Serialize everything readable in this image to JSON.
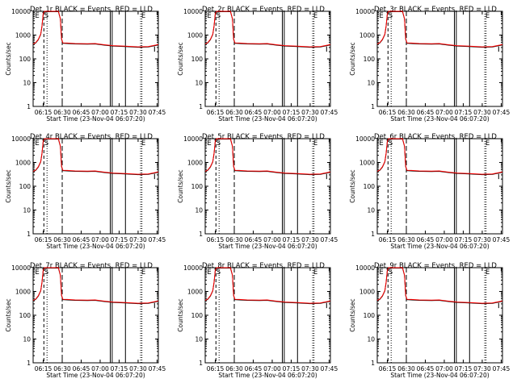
{
  "chart_data": [
    {
      "type": "line",
      "title": "Det_1r BLACK = Events, RED = LLD",
      "xlabel": "Start Time (23-Nov-04 06:07:20)",
      "ylabel": "Counts/sec",
      "ylim": [
        1,
        10000
      ],
      "yscale": "log",
      "xticks": [
        "06:15",
        "06:30",
        "06:45",
        "07:00",
        "07:15",
        "07:30",
        "07:45"
      ],
      "yticks": [
        "1",
        "10",
        "100",
        "1000",
        "10000"
      ],
      "markers": [
        "E",
        "S",
        "E"
      ],
      "series": [
        {
          "name": "Events",
          "color": "#000000"
        },
        {
          "name": "LLD",
          "color": "#ff0000"
        }
      ]
    },
    {
      "type": "line",
      "title": "Det_2r BLACK = Events, RED = LLD",
      "xlabel": "Start Time (23-Nov-04 06:07:20)",
      "ylabel": "Counts/sec",
      "ylim": [
        1,
        10000
      ],
      "yscale": "log",
      "xticks": [
        "06:15",
        "06:30",
        "06:45",
        "07:00",
        "07:15",
        "07:30",
        "07:45"
      ],
      "yticks": [
        "1",
        "10",
        "100",
        "1000",
        "10000"
      ],
      "markers": [
        "E",
        "S",
        "E"
      ],
      "series": [
        {
          "name": "Events",
          "color": "#000000"
        },
        {
          "name": "LLD",
          "color": "#ff0000"
        }
      ]
    },
    {
      "type": "line",
      "title": "Det_3r BLACK = Events, RED = LLD",
      "xlabel": "Start Time (23-Nov-04 06:07:20)",
      "ylabel": "Counts/sec",
      "ylim": [
        1,
        10000
      ],
      "yscale": "log",
      "xticks": [
        "06:15",
        "06:30",
        "06:45",
        "07:00",
        "07:15",
        "07:30",
        "07:45"
      ],
      "yticks": [
        "1",
        "10",
        "100",
        "1000",
        "10000"
      ],
      "markers": [
        "E",
        "S",
        "E"
      ],
      "series": [
        {
          "name": "Events",
          "color": "#000000"
        },
        {
          "name": "LLD",
          "color": "#ff0000"
        }
      ]
    },
    {
      "type": "line",
      "title": "Det_4r BLACK = Events, RED = LLD",
      "xlabel": "Start Time (23-Nov-04 06:07:20)",
      "ylabel": "Counts/sec",
      "ylim": [
        1,
        10000
      ],
      "yscale": "log",
      "xticks": [
        "06:15",
        "06:30",
        "06:45",
        "07:00",
        "07:15",
        "07:30",
        "07:45"
      ],
      "yticks": [
        "1",
        "10",
        "100",
        "1000",
        "10000"
      ],
      "markers": [
        "E",
        "S",
        "E"
      ],
      "series": [
        {
          "name": "Events",
          "color": "#000000"
        },
        {
          "name": "LLD",
          "color": "#ff0000"
        }
      ]
    },
    {
      "type": "line",
      "title": "Det_5r BLACK = Events, RED = LLD",
      "xlabel": "Start Time (23-Nov-04 06:07:20)",
      "ylabel": "Counts/sec",
      "ylim": [
        1,
        10000
      ],
      "yscale": "log",
      "xticks": [
        "06:15",
        "06:30",
        "06:45",
        "07:00",
        "07:15",
        "07:30",
        "07:45"
      ],
      "yticks": [
        "1",
        "10",
        "100",
        "1000",
        "10000"
      ],
      "markers": [
        "E",
        "S",
        "E"
      ],
      "series": [
        {
          "name": "Events",
          "color": "#000000"
        },
        {
          "name": "LLD",
          "color": "#ff0000"
        }
      ]
    },
    {
      "type": "line",
      "title": "Det_6r BLACK = Events, RED = LLD",
      "xlabel": "Start Time (23-Nov-04 06:07:20)",
      "ylabel": "Counts/sec",
      "ylim": [
        1,
        10000
      ],
      "yscale": "log",
      "xticks": [
        "06:15",
        "06:30",
        "06:45",
        "07:00",
        "07:15",
        "07:30",
        "07:45"
      ],
      "yticks": [
        "1",
        "10",
        "100",
        "1000",
        "10000"
      ],
      "markers": [
        "E",
        "S",
        "E"
      ],
      "series": [
        {
          "name": "Events",
          "color": "#000000"
        },
        {
          "name": "LLD",
          "color": "#ff0000"
        }
      ]
    },
    {
      "type": "line",
      "title": "Det_7r BLACK = Events, RED = LLD",
      "xlabel": "Start Time (23-Nov-04 06:07:20)",
      "ylabel": "Counts/sec",
      "ylim": [
        1,
        10000
      ],
      "yscale": "log",
      "xticks": [
        "06:15",
        "06:30",
        "06:45",
        "07:00",
        "07:15",
        "07:30",
        "07:45"
      ],
      "yticks": [
        "1",
        "10",
        "100",
        "1000",
        "10000"
      ],
      "markers": [
        "E",
        "S",
        "E"
      ],
      "series": [
        {
          "name": "Events",
          "color": "#000000"
        },
        {
          "name": "LLD",
          "color": "#ff0000"
        }
      ]
    },
    {
      "type": "line",
      "title": "Det_8r BLACK = Events, RED = LLD",
      "xlabel": "Start Time (23-Nov-04 06:07:20)",
      "ylabel": "Counts/sec",
      "ylim": [
        1,
        10000
      ],
      "yscale": "log",
      "xticks": [
        "06:15",
        "06:30",
        "06:45",
        "07:00",
        "07:15",
        "07:30",
        "07:45"
      ],
      "yticks": [
        "1",
        "10",
        "100",
        "1000",
        "10000"
      ],
      "markers": [
        "E",
        "S",
        "E"
      ],
      "series": [
        {
          "name": "Events",
          "color": "#000000"
        },
        {
          "name": "LLD",
          "color": "#ff0000"
        }
      ]
    },
    {
      "type": "line",
      "title": "Det_9r BLACK = Events, RED = LLD",
      "xlabel": "Start Time (23-Nov-04 06:07:20)",
      "ylabel": "Counts/sec",
      "ylim": [
        1,
        10000
      ],
      "yscale": "log",
      "xticks": [
        "06:15",
        "06:30",
        "06:45",
        "07:00",
        "07:15",
        "07:30",
        "07:45"
      ],
      "yticks": [
        "1",
        "10",
        "100",
        "1000",
        "10000"
      ],
      "markers": [
        "E",
        "S",
        "E"
      ],
      "series": [
        {
          "name": "Events",
          "color": "#000000"
        },
        {
          "name": "LLD",
          "color": "#ff0000"
        }
      ]
    }
  ]
}
